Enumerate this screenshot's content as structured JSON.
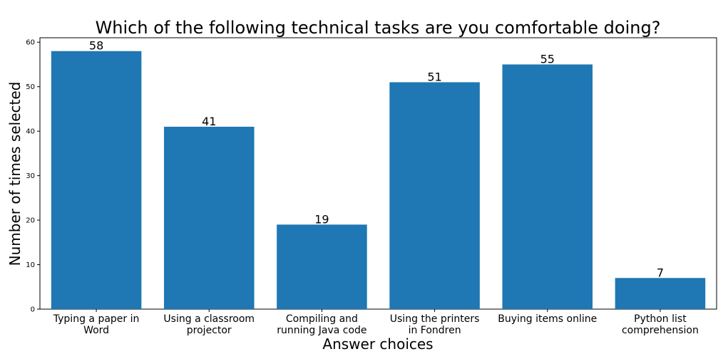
{
  "chart_data": {
    "type": "bar",
    "title": "Which of the following technical tasks are you comfortable doing?",
    "xlabel": "Answer choices",
    "ylabel": "Number of times selected",
    "categories": [
      [
        "Typing a paper in",
        "Word"
      ],
      [
        "Using a classroom",
        "projector"
      ],
      [
        "Compiling and",
        "running Java code"
      ],
      [
        "Using the printers",
        "in Fondren"
      ],
      [
        "Buying items online"
      ],
      [
        "Python list",
        "comprehension"
      ]
    ],
    "values": [
      58,
      41,
      19,
      51,
      55,
      7
    ],
    "data_labels": [
      "58",
      "41",
      "19",
      "51",
      "55",
      "7"
    ],
    "ylim": [
      0,
      61
    ],
    "yticks": [
      0,
      10,
      20,
      30,
      40,
      50,
      60
    ],
    "ytick_labels": [
      "0",
      "10",
      "20",
      "30",
      "40",
      "50",
      "60"
    ],
    "grid": false,
    "bar_color": "#1f77b4"
  }
}
